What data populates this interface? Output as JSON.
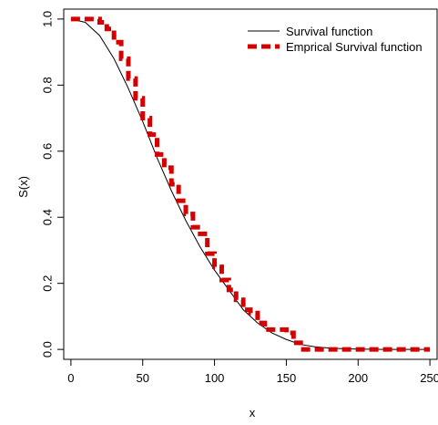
{
  "chart_data": {
    "type": "line",
    "xlabel": "x",
    "ylabel": "S(x)",
    "xlim": [
      -5,
      255
    ],
    "ylim": [
      -0.03,
      1.03
    ],
    "xticks": [
      0,
      50,
      100,
      150,
      200,
      250
    ],
    "yticks": [
      0.0,
      0.2,
      0.4,
      0.6,
      0.8,
      1.0
    ],
    "xtick_labels": [
      "0",
      "50",
      "100",
      "150",
      "200",
      "250"
    ],
    "ytick_labels": [
      "0.0",
      "0.2",
      "0.4",
      "0.6",
      "0.8",
      "1.0"
    ],
    "legend_position": "top-right",
    "series": [
      {
        "name": "Survival function",
        "color": "#000000",
        "style": "solid",
        "x": [
          0,
          10,
          20,
          30,
          40,
          50,
          60,
          70,
          80,
          90,
          100,
          110,
          120,
          130,
          140,
          150,
          160,
          170,
          180,
          190,
          200,
          210,
          220,
          230,
          240,
          250
        ],
        "y": [
          1.0,
          0.99,
          0.95,
          0.88,
          0.79,
          0.69,
          0.58,
          0.48,
          0.39,
          0.31,
          0.24,
          0.18,
          0.12,
          0.08,
          0.05,
          0.03,
          0.015,
          0.008,
          0.004,
          0.002,
          0.001,
          0.0005,
          0.0,
          0.0,
          0.0,
          0.0
        ]
      },
      {
        "name": "Emprical Survival function",
        "color": "#d40000",
        "style": "dashed-step",
        "x": [
          0,
          10,
          20,
          25,
          30,
          35,
          40,
          45,
          50,
          55,
          60,
          65,
          70,
          75,
          80,
          85,
          90,
          95,
          100,
          105,
          110,
          115,
          120,
          125,
          130,
          135,
          140,
          145,
          150,
          155,
          160,
          165,
          170,
          180,
          200,
          220,
          250
        ],
        "y": [
          1.0,
          1.0,
          0.99,
          0.97,
          0.93,
          0.88,
          0.82,
          0.76,
          0.7,
          0.65,
          0.59,
          0.55,
          0.5,
          0.45,
          0.41,
          0.37,
          0.35,
          0.29,
          0.25,
          0.21,
          0.18,
          0.15,
          0.12,
          0.11,
          0.08,
          0.06,
          0.06,
          0.06,
          0.05,
          0.02,
          0.0,
          0.0,
          0.0,
          0.0,
          0.0,
          0.0,
          0.0
        ]
      }
    ]
  }
}
